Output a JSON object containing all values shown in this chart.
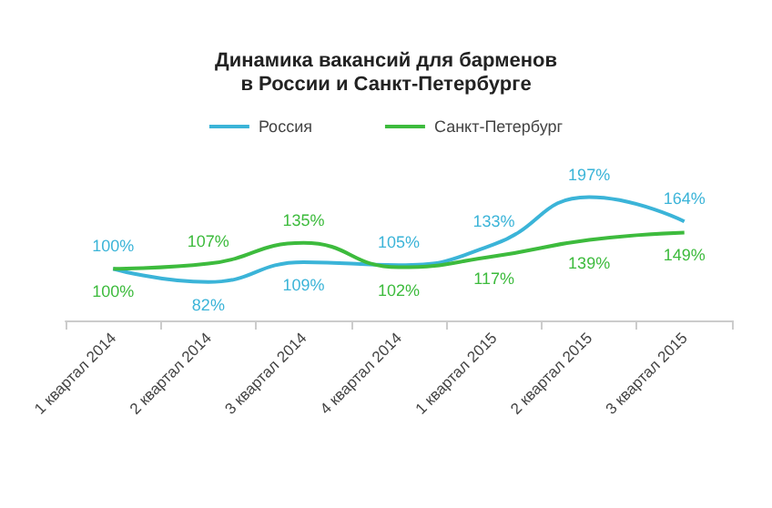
{
  "chart_data": {
    "type": "line",
    "title": "Динамика вакансий для барменов\nв России и Санкт-Петербурге",
    "categories": [
      "1 квартал 2014",
      "2 квартал 2014",
      "3 квартал 2014",
      "4 квартал 2014",
      "1 квартал 2015",
      "2 квартал 2015",
      "3 квартал 2015"
    ],
    "series": [
      {
        "name": "Россия",
        "color": "#3bb4d8",
        "values": [
          100,
          82,
          109,
          105,
          133,
          197,
          164
        ],
        "value_labels": [
          "100%",
          "82%",
          "109%",
          "105%",
          "133%",
          "197%",
          "164%"
        ]
      },
      {
        "name": "Санкт-Петербург",
        "color": "#3dbb3d",
        "values": [
          100,
          107,
          135,
          102,
          117,
          139,
          149
        ],
        "value_labels": [
          "100%",
          "107%",
          "135%",
          "102%",
          "117%",
          "139%",
          "149%"
        ]
      }
    ],
    "legend": "top",
    "marker": "none",
    "line_style": "solid",
    "grid": false
  }
}
